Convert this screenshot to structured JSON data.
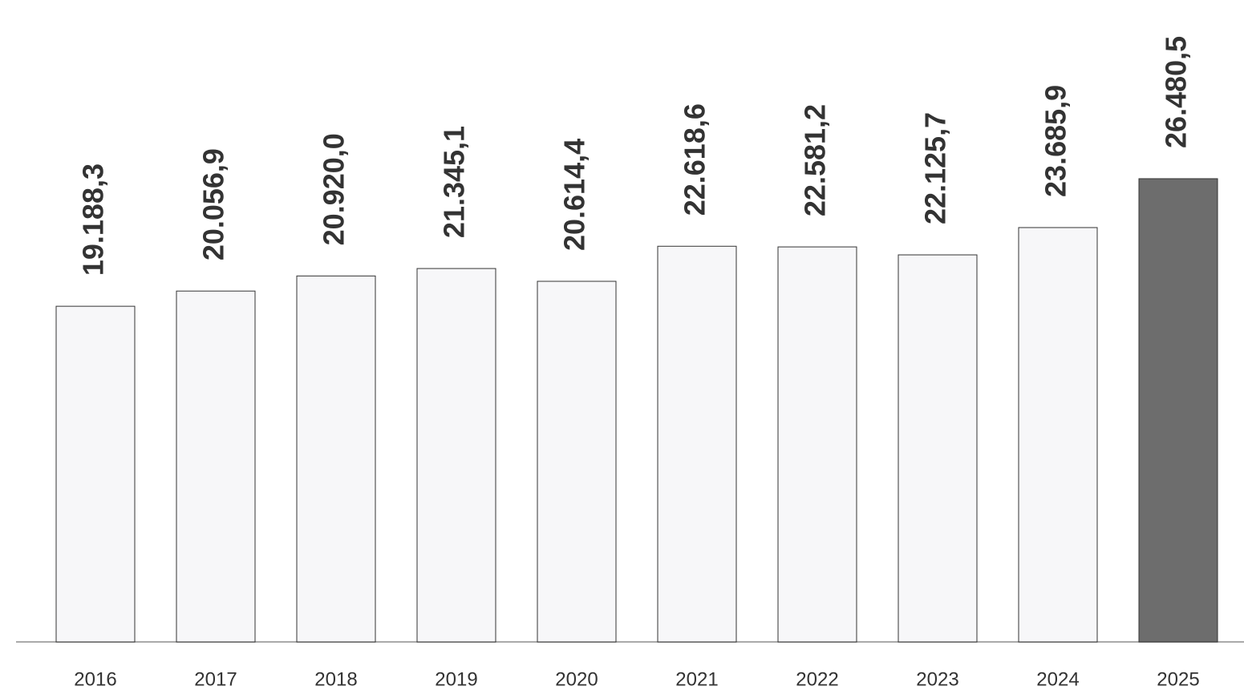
{
  "chart_data": {
    "type": "bar",
    "categories": [
      "2016",
      "2017",
      "2018",
      "2019",
      "2020",
      "2021",
      "2022",
      "2023",
      "2024",
      "2025"
    ],
    "values": [
      19188.3,
      20056.9,
      20920.0,
      21345.1,
      20614.4,
      22618.6,
      22581.2,
      22125.7,
      23685.9,
      26480.5
    ],
    "value_labels": [
      "19.188,3",
      "20.056,9",
      "20.920,0",
      "21.345,1",
      "20.614,4",
      "22.618,6",
      "22.581,2",
      "22.125,7",
      "23.685,9",
      "26.480,5"
    ],
    "colors": [
      "#f7f7f9",
      "#f7f7f9",
      "#f7f7f9",
      "#f7f7f9",
      "#f7f7f9",
      "#f7f7f9",
      "#f7f7f9",
      "#f7f7f9",
      "#f7f7f9",
      "#6d6d6d"
    ],
    "ylim": [
      0,
      35000
    ]
  }
}
